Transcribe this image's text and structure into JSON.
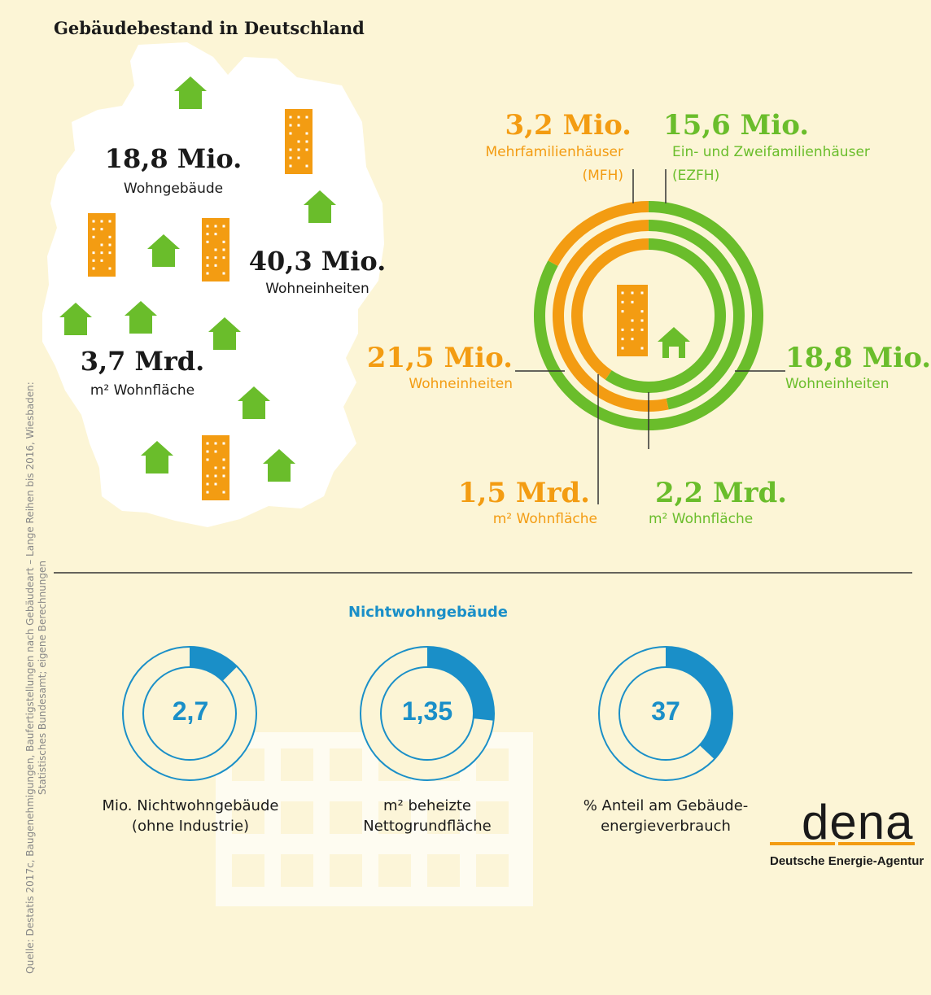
{
  "title": "Gebäudebestand in Deutschland",
  "map": {
    "wohngebaeude": {
      "value": "18,8 Mio.",
      "label": "Wohngebäude"
    },
    "wohneinheiten": {
      "value": "40,3 Mio.",
      "label": "Wohneinheiten"
    },
    "wohnflaeche": {
      "value": "3,7 Mrd.",
      "label": "m² Wohnfläche"
    }
  },
  "rings": {
    "mfh": {
      "value": "3,2 Mio.",
      "label1": "Mehrfamilienhäuser",
      "label2": "(MFH)"
    },
    "ezfh": {
      "value": "15,6 Mio.",
      "label1": "Ein- und Zweifamilienhäuser",
      "label2": "(EZFH)"
    },
    "wohneinheiten_mfh": {
      "value": "21,5 Mio.",
      "label": "Wohneinheiten"
    },
    "wohneinheiten_ezfh": {
      "value": "18,8 Mio.",
      "label": "Wohneinheiten"
    },
    "flaeche_mfh": {
      "value": "1,5 Mrd.",
      "label": "m² Wohnfläche"
    },
    "flaeche_ezfh": {
      "value": "2,2 Mrd.",
      "label": "m² Wohnfläche"
    }
  },
  "section_title": "Nichtwohngebäude",
  "source": "Quelle: Destatis 2017c, Baugenehmigungen, Baufertigstellungen nach Gebäudeart – Lange Reihen bis 2016, Wiesbaden: Statistisches Bundesamt; eigene Berechnungen",
  "logo": {
    "word": "dena",
    "subtitle": "Deutsche Energie-Agentur"
  },
  "colors": {
    "orange": "#f39c12",
    "green": "#6abd2b",
    "blue": "#1a8fc8",
    "background": "#fcf5d6"
  },
  "chart_data": [
    {
      "type": "pie",
      "title": "",
      "rings": [
        {
          "name": "Wohngebäude",
          "categories": [
            "MFH",
            "EZFH"
          ],
          "values": [
            3.2,
            15.6
          ],
          "unit": "Mio."
        },
        {
          "name": "Wohneinheiten",
          "categories": [
            "MFH",
            "EZFH"
          ],
          "values": [
            21.5,
            18.8
          ],
          "unit": "Mio."
        },
        {
          "name": "m² Wohnfläche",
          "categories": [
            "MFH",
            "EZFH"
          ],
          "values": [
            1.5,
            2.2
          ],
          "unit": "Mrd."
        }
      ]
    },
    {
      "type": "pie",
      "donuts": [
        {
          "value": "2,7",
          "fraction": 0.126,
          "label1": "Mio. Nichtwohngebäude",
          "label2": "(ohne Industrie)"
        },
        {
          "value": "1,35",
          "fraction": 0.267,
          "label1": "m² beheizte",
          "label2": "Nettogrundfläche"
        },
        {
          "value": "37",
          "fraction": 0.37,
          "label1": "% Anteil am Gebäude-",
          "label2": "energieverbrauch"
        }
      ]
    }
  ]
}
